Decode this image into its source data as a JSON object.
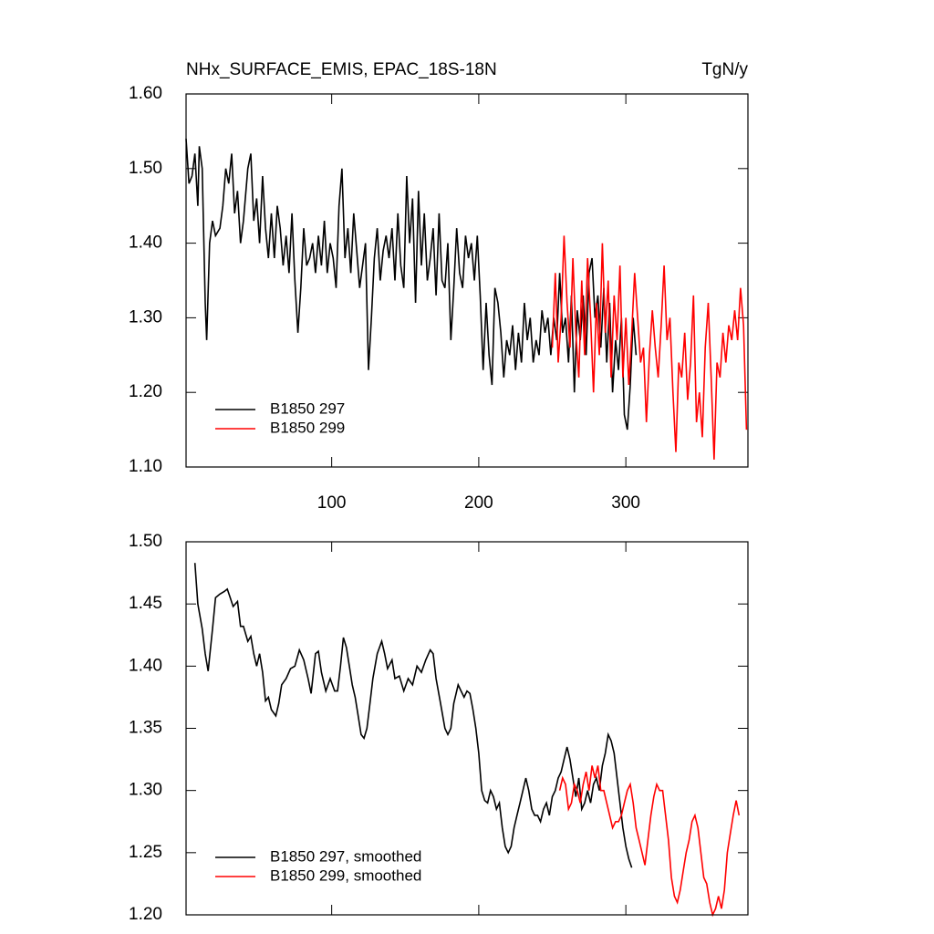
{
  "chart_data": [
    {
      "type": "line",
      "title": "NHx_SURFACE_EMIS, EPAC_18S-18N",
      "right_title": "TgN/y",
      "xlim": [
        1,
        383
      ],
      "xticks": [
        100,
        200,
        300
      ],
      "show_xtick_labels": true,
      "ylim": [
        1.1,
        1.6
      ],
      "yticks": [
        {
          "value": 1.1,
          "label": "1.10"
        },
        {
          "value": 1.2,
          "label": "1.20"
        },
        {
          "value": 1.3,
          "label": "1.30"
        },
        {
          "value": 1.4,
          "label": "1.40"
        },
        {
          "value": 1.5,
          "label": "1.50"
        },
        {
          "value": 1.6,
          "label": "1.60"
        }
      ],
      "legend": "lower left",
      "series": [
        {
          "name": "B1850 297",
          "color": "#000000",
          "x": [
            1,
            3,
            5,
            7,
            9,
            10,
            12,
            14,
            15,
            17,
            19,
            21,
            24,
            26,
            28,
            30,
            32,
            34,
            36,
            38,
            40,
            43,
            45,
            47,
            49,
            51,
            53,
            55,
            57,
            59,
            61,
            63,
            65,
            67,
            69,
            71,
            73,
            75,
            77,
            79,
            81,
            83,
            85,
            87,
            89,
            91,
            93,
            95,
            97,
            99,
            101,
            103,
            105,
            107,
            109,
            111,
            113,
            115,
            117,
            119,
            121,
            123,
            125,
            127,
            129,
            131,
            133,
            135,
            137,
            139,
            141,
            143,
            145,
            147,
            149,
            151,
            153,
            155,
            157,
            159,
            161,
            163,
            165,
            167,
            169,
            171,
            173,
            175,
            177,
            179,
            181,
            183,
            185,
            187,
            189,
            191,
            193,
            195,
            197,
            199,
            201,
            203,
            205,
            207,
            209,
            211,
            213,
            215,
            217,
            219,
            221,
            223,
            225,
            227,
            229,
            231,
            233,
            235,
            237,
            239,
            241,
            243,
            245,
            247,
            249,
            251,
            253,
            255,
            257,
            259,
            261,
            263,
            265,
            267,
            269,
            271,
            273,
            275,
            277,
            279,
            281,
            283,
            285,
            287,
            289,
            291,
            293,
            295,
            297,
            299,
            301,
            303,
            305,
            307
          ],
          "values": [
            1.54,
            1.48,
            1.49,
            1.52,
            1.45,
            1.53,
            1.5,
            1.32,
            1.27,
            1.4,
            1.43,
            1.41,
            1.42,
            1.45,
            1.5,
            1.48,
            1.52,
            1.44,
            1.47,
            1.4,
            1.43,
            1.5,
            1.52,
            1.43,
            1.46,
            1.4,
            1.49,
            1.42,
            1.38,
            1.44,
            1.38,
            1.45,
            1.42,
            1.37,
            1.41,
            1.36,
            1.44,
            1.35,
            1.28,
            1.34,
            1.42,
            1.37,
            1.38,
            1.4,
            1.36,
            1.41,
            1.37,
            1.43,
            1.36,
            1.4,
            1.38,
            1.34,
            1.45,
            1.5,
            1.38,
            1.42,
            1.36,
            1.44,
            1.39,
            1.34,
            1.37,
            1.4,
            1.23,
            1.3,
            1.38,
            1.42,
            1.35,
            1.39,
            1.41,
            1.38,
            1.42,
            1.35,
            1.44,
            1.37,
            1.34,
            1.49,
            1.4,
            1.46,
            1.32,
            1.47,
            1.37,
            1.44,
            1.35,
            1.38,
            1.42,
            1.33,
            1.44,
            1.35,
            1.34,
            1.4,
            1.27,
            1.34,
            1.42,
            1.36,
            1.34,
            1.41,
            1.38,
            1.4,
            1.35,
            1.41,
            1.33,
            1.23,
            1.32,
            1.25,
            1.21,
            1.34,
            1.32,
            1.28,
            1.22,
            1.27,
            1.25,
            1.29,
            1.23,
            1.28,
            1.24,
            1.32,
            1.27,
            1.3,
            1.24,
            1.27,
            1.25,
            1.31,
            1.28,
            1.3,
            1.25,
            1.3,
            1.27,
            1.36,
            1.28,
            1.3,
            1.24,
            1.33,
            1.2,
            1.31,
            1.27,
            1.33,
            1.25,
            1.36,
            1.38,
            1.3,
            1.33,
            1.26,
            1.34,
            1.24,
            1.32,
            1.2,
            1.27,
            1.23,
            1.3,
            1.17,
            1.15,
            1.21,
            1.3,
            1.25
          ]
        },
        {
          "name": "B1850 299",
          "color": "#ff0000",
          "x": [
            250,
            252,
            254,
            256,
            258,
            260,
            262,
            264,
            266,
            268,
            270,
            272,
            274,
            276,
            278,
            280,
            282,
            284,
            286,
            288,
            290,
            292,
            294,
            296,
            298,
            300,
            302,
            304,
            306,
            308,
            310,
            312,
            314,
            316,
            318,
            320,
            322,
            324,
            326,
            328,
            330,
            332,
            334,
            336,
            338,
            340,
            342,
            344,
            346,
            348,
            350,
            352,
            354,
            356,
            358,
            360,
            362,
            364,
            366,
            368,
            370,
            372,
            374,
            376,
            378,
            380,
            382
          ],
          "values": [
            1.26,
            1.36,
            1.24,
            1.3,
            1.41,
            1.32,
            1.26,
            1.38,
            1.28,
            1.22,
            1.35,
            1.25,
            1.38,
            1.3,
            1.2,
            1.32,
            1.25,
            1.4,
            1.28,
            1.35,
            1.22,
            1.33,
            1.27,
            1.37,
            1.22,
            1.3,
            1.21,
            1.28,
            1.36,
            1.3,
            1.24,
            1.26,
            1.16,
            1.25,
            1.31,
            1.26,
            1.22,
            1.29,
            1.37,
            1.27,
            1.3,
            1.2,
            1.12,
            1.24,
            1.22,
            1.28,
            1.19,
            1.24,
            1.33,
            1.16,
            1.2,
            1.14,
            1.26,
            1.32,
            1.22,
            1.11,
            1.24,
            1.22,
            1.28,
            1.24,
            1.29,
            1.27,
            1.31,
            1.27,
            1.34,
            1.29,
            1.15
          ]
        }
      ]
    },
    {
      "type": "line",
      "xlim": [
        1,
        383
      ],
      "xticks": [
        100,
        200,
        300
      ],
      "show_xtick_labels": false,
      "ylim": [
        1.2,
        1.5
      ],
      "yticks": [
        {
          "value": 1.2,
          "label": "1.20"
        },
        1.25,
        {
          "value": 1.3,
          "label": "1.30"
        },
        1.35,
        {
          "value": 1.4,
          "label": "1.40"
        },
        1.45,
        {
          "value": 1.5,
          "label": "1.50"
        }
      ],
      "legend": "lower left",
      "series": [
        {
          "name": "B1850 297, smoothed",
          "color": "#000000",
          "x": [
            7,
            9,
            12,
            14,
            16,
            19,
            21,
            24,
            27,
            29,
            31,
            33,
            36,
            38,
            40,
            43,
            45,
            47,
            49,
            51,
            53,
            55,
            57,
            59,
            62,
            64,
            66,
            69,
            72,
            75,
            78,
            81,
            84,
            86,
            89,
            91,
            93,
            96,
            99,
            102,
            104,
            106,
            108,
            110,
            112,
            114,
            116,
            118,
            120,
            122,
            124,
            126,
            128,
            131,
            134,
            136,
            138,
            141,
            143,
            146,
            149,
            152,
            155,
            158,
            161,
            164,
            167,
            169,
            171,
            174,
            177,
            179,
            181,
            183,
            186,
            188,
            190,
            192,
            194,
            196,
            198,
            200,
            202,
            204,
            206,
            208,
            210,
            212,
            214,
            216,
            218,
            220,
            222,
            224,
            226,
            228,
            230,
            232,
            234,
            236,
            238,
            240,
            242,
            244,
            246,
            248,
            250,
            252,
            254,
            256,
            258,
            260,
            262,
            264,
            266,
            268,
            270,
            272,
            274,
            276,
            278,
            280,
            282,
            284,
            286,
            288,
            290,
            292,
            294,
            296,
            298,
            300,
            302,
            304
          ],
          "values": [
            1.483,
            1.45,
            1.43,
            1.41,
            1.396,
            1.43,
            1.455,
            1.458,
            1.46,
            1.462,
            1.455,
            1.448,
            1.452,
            1.432,
            1.432,
            1.42,
            1.424,
            1.41,
            1.4,
            1.41,
            1.395,
            1.372,
            1.375,
            1.365,
            1.36,
            1.37,
            1.385,
            1.39,
            1.398,
            1.4,
            1.413,
            1.405,
            1.39,
            1.378,
            1.41,
            1.412,
            1.395,
            1.38,
            1.39,
            1.38,
            1.38,
            1.4,
            1.423,
            1.415,
            1.4,
            1.385,
            1.375,
            1.36,
            1.345,
            1.342,
            1.35,
            1.37,
            1.39,
            1.41,
            1.42,
            1.41,
            1.398,
            1.405,
            1.39,
            1.392,
            1.38,
            1.39,
            1.385,
            1.4,
            1.395,
            1.405,
            1.413,
            1.41,
            1.39,
            1.37,
            1.35,
            1.345,
            1.35,
            1.37,
            1.385,
            1.38,
            1.375,
            1.38,
            1.378,
            1.365,
            1.35,
            1.33,
            1.3,
            1.292,
            1.29,
            1.3,
            1.295,
            1.285,
            1.29,
            1.27,
            1.255,
            1.25,
            1.255,
            1.27,
            1.28,
            1.29,
            1.3,
            1.31,
            1.3,
            1.285,
            1.28,
            1.28,
            1.275,
            1.285,
            1.29,
            1.28,
            1.295,
            1.3,
            1.31,
            1.315,
            1.325,
            1.335,
            1.325,
            1.31,
            1.295,
            1.31,
            1.285,
            1.29,
            1.3,
            1.29,
            1.305,
            1.31,
            1.3,
            1.32,
            1.33,
            1.345,
            1.34,
            1.33,
            1.31,
            1.29,
            1.27,
            1.255,
            1.245,
            1.238
          ]
        },
        {
          "name": "B1850 299, smoothed",
          "color": "#ff0000",
          "x": [
            255,
            257,
            259,
            261,
            263,
            265,
            267,
            269,
            271,
            273,
            275,
            277,
            279,
            281,
            283,
            285,
            287,
            289,
            291,
            293,
            295,
            297,
            299,
            301,
            303,
            305,
            307,
            309,
            311,
            313,
            315,
            317,
            319,
            321,
            323,
            325,
            327,
            329,
            331,
            333,
            335,
            337,
            339,
            341,
            343,
            345,
            347,
            349,
            351,
            353,
            355,
            357,
            359,
            361,
            363,
            365,
            367,
            369,
            371,
            373,
            375,
            377
          ],
          "values": [
            1.3,
            1.31,
            1.305,
            1.285,
            1.29,
            1.305,
            1.3,
            1.29,
            1.305,
            1.315,
            1.3,
            1.32,
            1.31,
            1.32,
            1.3,
            1.3,
            1.29,
            1.28,
            1.27,
            1.275,
            1.275,
            1.28,
            1.29,
            1.3,
            1.305,
            1.29,
            1.27,
            1.26,
            1.25,
            1.24,
            1.26,
            1.28,
            1.295,
            1.305,
            1.3,
            1.3,
            1.28,
            1.26,
            1.23,
            1.215,
            1.21,
            1.22,
            1.235,
            1.25,
            1.26,
            1.275,
            1.28,
            1.27,
            1.25,
            1.23,
            1.225,
            1.21,
            1.2,
            1.205,
            1.215,
            1.205,
            1.22,
            1.25,
            1.265,
            1.28,
            1.292,
            1.28
          ]
        }
      ]
    }
  ]
}
